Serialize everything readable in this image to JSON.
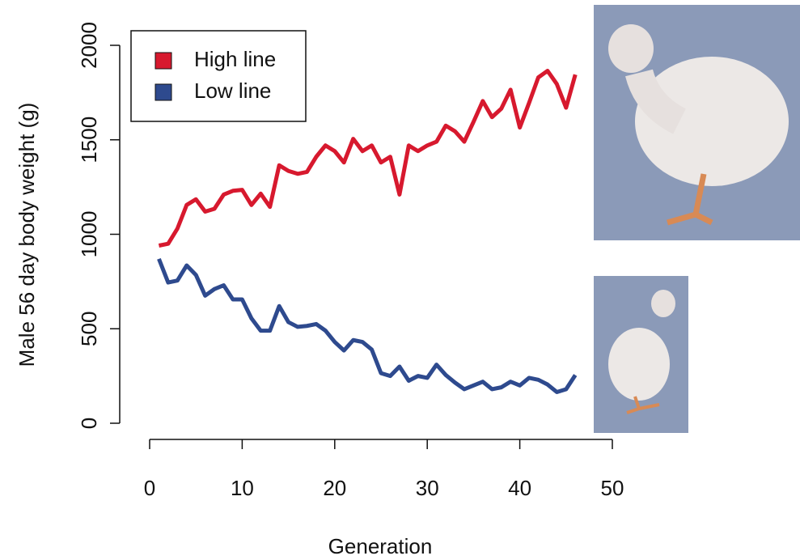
{
  "chart_data": {
    "type": "line",
    "x_label": "Generation",
    "y_label": "Male 56 day body weight (g)",
    "x": [
      1,
      2,
      3,
      4,
      5,
      6,
      7,
      8,
      9,
      10,
      11,
      12,
      13,
      14,
      15,
      16,
      17,
      18,
      19,
      20,
      21,
      22,
      23,
      24,
      25,
      26,
      27,
      28,
      29,
      30,
      31,
      32,
      33,
      34,
      35,
      36,
      37,
      38,
      39,
      40,
      41,
      42,
      43,
      44,
      45,
      46
    ],
    "series": [
      {
        "name": "High line",
        "color": "#d7192e",
        "values": [
          940,
          950,
          1030,
          1155,
          1185,
          1120,
          1135,
          1210,
          1230,
          1235,
          1155,
          1215,
          1145,
          1365,
          1335,
          1320,
          1330,
          1410,
          1470,
          1440,
          1380,
          1505,
          1440,
          1470,
          1380,
          1410,
          1210,
          1470,
          1440,
          1470,
          1490,
          1575,
          1545,
          1490,
          1595,
          1705,
          1620,
          1665,
          1765,
          1565,
          1695,
          1830,
          1865,
          1795,
          1670,
          1845
        ]
      },
      {
        "name": "Low line",
        "color": "#2e4a8e",
        "values": [
          870,
          745,
          755,
          835,
          785,
          675,
          710,
          730,
          655,
          655,
          555,
          490,
          490,
          620,
          535,
          510,
          515,
          525,
          490,
          430,
          385,
          440,
          430,
          390,
          265,
          250,
          300,
          225,
          250,
          240,
          310,
          255,
          215,
          180,
          200,
          220,
          180,
          190,
          220,
          200,
          240,
          230,
          205,
          165,
          180,
          255
        ]
      }
    ],
    "xlim": [
      0,
      50
    ],
    "xticks": [
      0,
      10,
      20,
      30,
      40,
      50
    ],
    "ylim": [
      0,
      2000
    ],
    "yticks": [
      0,
      500,
      1000,
      1500,
      2000
    ],
    "legend": "top-left"
  }
}
